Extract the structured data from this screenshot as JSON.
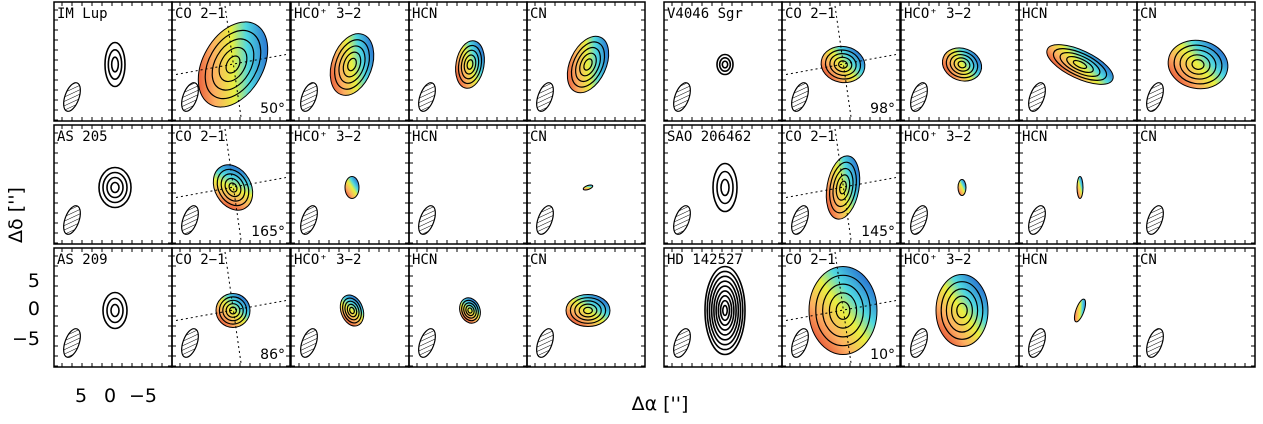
{
  "axes": {
    "y_label": "Δδ ['']",
    "x_label": "Δα ['']",
    "y_ticks": [
      "5",
      "0",
      "−5"
    ],
    "x_ticks": [
      "5",
      "0",
      "−5"
    ]
  },
  "groups": [
    {
      "source": "IM Lup",
      "lines": [
        "CO 2−1",
        "HCO⁺ 3−2",
        "HCN",
        "CN"
      ],
      "angle": "50°"
    },
    {
      "source": "AS 205",
      "lines": [
        "CO 2−1",
        "HCO⁺ 3−2",
        "HCN",
        "CN"
      ],
      "angle": "165°"
    },
    {
      "source": "AS 209",
      "lines": [
        "CO 2−1",
        "HCO⁺ 3−2",
        "HCN",
        "CN"
      ],
      "angle": "86°"
    },
    {
      "source": "V4046 Sgr",
      "lines": [
        "CO 2−1",
        "HCO⁺ 3−2",
        "HCN",
        "CN"
      ],
      "angle": "98°"
    },
    {
      "source": "SAO 206462",
      "lines": [
        "CO 2−1",
        "HCO⁺ 3−2",
        "HCN",
        "CN"
      ],
      "angle": "145°"
    },
    {
      "source": "HD 142527",
      "lines": [
        "CO 2−1",
        "HCO⁺ 3−2",
        "HCN",
        "CN"
      ],
      "angle": "10°"
    }
  ]
}
